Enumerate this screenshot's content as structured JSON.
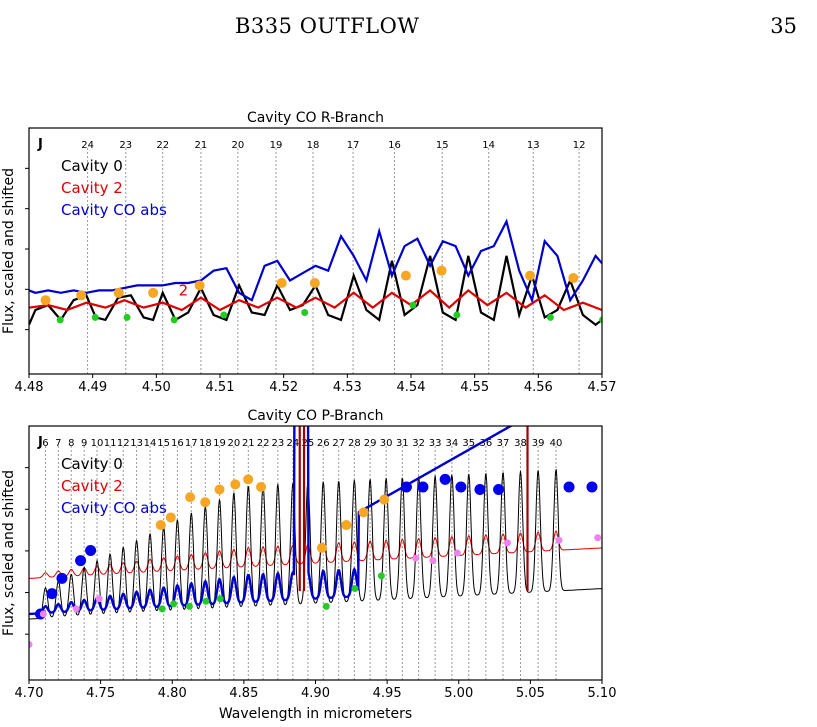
{
  "header": {
    "title": "B335 OUTFLOW",
    "page": "35"
  },
  "chart_data": [
    {
      "type": "line",
      "title": "Cavity CO R-Branch",
      "ylabel": "Flux, scaled and shifted",
      "xlabel": "",
      "xlim": [
        4.48,
        4.57
      ],
      "ylim": [
        0,
        1
      ],
      "xticks": [
        4.48,
        4.49,
        4.5,
        4.51,
        4.52,
        4.53,
        4.54,
        4.55,
        4.56,
        4.57
      ],
      "j_marker": "J",
      "j_lines": [
        {
          "label": "24",
          "x": 4.4892
        },
        {
          "label": "23",
          "x": 4.4952
        },
        {
          "label": "22",
          "x": 4.501
        },
        {
          "label": "21",
          "x": 4.507
        },
        {
          "label": "20",
          "x": 4.5128
        },
        {
          "label": "19",
          "x": 4.5188
        },
        {
          "label": "18",
          "x": 4.5246
        },
        {
          "label": "17",
          "x": 4.5309
        },
        {
          "label": "16",
          "x": 4.5374
        },
        {
          "label": "15",
          "x": 4.5449
        },
        {
          "label": "14",
          "x": 4.5522
        },
        {
          "label": "13",
          "x": 4.5592
        },
        {
          "label": "12",
          "x": 4.5664
        }
      ],
      "annotation": {
        "text": "2",
        "x": 4.5035,
        "y": 0.32
      },
      "legend": [
        {
          "name": "Cavity 0",
          "color": "#000000"
        },
        {
          "name": "Cavity 2",
          "color": "#dd0000"
        },
        {
          "name": "Cavity CO abs",
          "color": "#0000cc"
        }
      ],
      "series": [
        {
          "name": "Cavity 0",
          "color": "#000000",
          "x": [
            4.48,
            4.481,
            4.483,
            4.485,
            4.487,
            4.489,
            4.4905,
            4.492,
            4.494,
            4.496,
            4.498,
            4.4995,
            4.501,
            4.503,
            4.505,
            4.507,
            4.509,
            4.511,
            4.513,
            4.515,
            4.517,
            4.519,
            4.521,
            4.523,
            4.525,
            4.527,
            4.529,
            4.531,
            4.533,
            4.535,
            4.537,
            4.539,
            4.541,
            4.543,
            4.545,
            4.547,
            4.549,
            4.551,
            4.553,
            4.555,
            4.557,
            4.559,
            4.561,
            4.563,
            4.565,
            4.567,
            4.569,
            4.57
          ],
          "y": [
            0.2,
            0.26,
            0.28,
            0.22,
            0.3,
            0.32,
            0.23,
            0.22,
            0.31,
            0.32,
            0.23,
            0.22,
            0.33,
            0.22,
            0.25,
            0.35,
            0.24,
            0.22,
            0.36,
            0.25,
            0.24,
            0.36,
            0.26,
            0.28,
            0.36,
            0.24,
            0.22,
            0.4,
            0.26,
            0.22,
            0.46,
            0.24,
            0.28,
            0.48,
            0.25,
            0.22,
            0.48,
            0.25,
            0.22,
            0.48,
            0.24,
            0.4,
            0.23,
            0.26,
            0.38,
            0.24,
            0.2,
            0.22
          ]
        },
        {
          "name": "Cavity 2",
          "color": "#dd0000",
          "x": [
            4.48,
            4.483,
            4.486,
            4.489,
            4.492,
            4.495,
            4.498,
            4.501,
            4.504,
            4.507,
            4.51,
            4.513,
            4.516,
            4.519,
            4.522,
            4.525,
            4.528,
            4.531,
            4.534,
            4.537,
            4.54,
            4.543,
            4.546,
            4.549,
            4.552,
            4.555,
            4.558,
            4.561,
            4.564,
            4.567,
            4.57
          ],
          "y": [
            0.27,
            0.28,
            0.26,
            0.29,
            0.27,
            0.3,
            0.27,
            0.29,
            0.26,
            0.31,
            0.26,
            0.3,
            0.27,
            0.31,
            0.27,
            0.31,
            0.27,
            0.33,
            0.27,
            0.33,
            0.28,
            0.34,
            0.27,
            0.34,
            0.28,
            0.33,
            0.27,
            0.32,
            0.26,
            0.29,
            0.26
          ]
        },
        {
          "name": "Cavity CO abs",
          "color": "#0000cc",
          "x": [
            4.48,
            4.481,
            4.483,
            4.485,
            4.487,
            4.489,
            4.491,
            4.493,
            4.495,
            4.497,
            4.499,
            4.501,
            4.503,
            4.505,
            4.507,
            4.509,
            4.511,
            4.513,
            4.515,
            4.517,
            4.519,
            4.521,
            4.523,
            4.525,
            4.527,
            4.529,
            4.531,
            4.533,
            4.535,
            4.537,
            4.539,
            4.541,
            4.543,
            4.545,
            4.547,
            4.549,
            4.551,
            4.553,
            4.555,
            4.557,
            4.559,
            4.561,
            4.563,
            4.565,
            4.567,
            4.569,
            4.57
          ],
          "y": [
            0.34,
            0.33,
            0.34,
            0.33,
            0.34,
            0.33,
            0.34,
            0.34,
            0.35,
            0.36,
            0.36,
            0.36,
            0.37,
            0.37,
            0.38,
            0.42,
            0.43,
            0.33,
            0.3,
            0.44,
            0.46,
            0.38,
            0.41,
            0.44,
            0.42,
            0.56,
            0.48,
            0.38,
            0.58,
            0.4,
            0.52,
            0.55,
            0.44,
            0.54,
            0.52,
            0.4,
            0.5,
            0.52,
            0.62,
            0.42,
            0.3,
            0.54,
            0.48,
            0.3,
            0.38,
            0.48,
            0.45
          ]
        }
      ],
      "markers": {
        "orange": {
          "color": "#f5a623",
          "points": [
            [
              4.4826,
              0.3
            ],
            [
              4.4882,
              0.32
            ],
            [
              4.4941,
              0.33
            ],
            [
              4.4995,
              0.33
            ],
            [
              4.5068,
              0.36
            ],
            [
              4.5197,
              0.37
            ],
            [
              4.5249,
              0.37
            ],
            [
              4.5392,
              0.4
            ],
            [
              4.5448,
              0.42
            ],
            [
              4.5587,
              0.4
            ],
            [
              4.5655,
              0.39
            ]
          ]
        },
        "green": {
          "color": "#22cc22",
          "points": [
            [
              4.4849,
              0.22
            ],
            [
              4.4904,
              0.23
            ],
            [
              4.4954,
              0.23
            ],
            [
              4.5028,
              0.22
            ],
            [
              4.5106,
              0.24
            ],
            [
              4.5233,
              0.25
            ],
            [
              4.5403,
              0.28
            ],
            [
              4.5472,
              0.24
            ],
            [
              4.5619,
              0.23
            ],
            [
              4.5701,
              0.22
            ]
          ]
        }
      }
    },
    {
      "type": "line",
      "title": "Cavity CO P-Branch",
      "ylabel": "Flux, scaled and shifted",
      "xlabel": "Wavelength in micrometers",
      "xlim": [
        4.7,
        5.1
      ],
      "ylim": [
        0,
        1
      ],
      "xticks": [
        4.7,
        4.75,
        4.8,
        4.85,
        4.9,
        4.95,
        5.0,
        5.05,
        5.1
      ],
      "j_marker": "J",
      "j_lines": [
        {
          "label": "6",
          "x": 4.7115
        },
        {
          "label": "7",
          "x": 4.7205
        },
        {
          "label": "8",
          "x": 4.7295
        },
        {
          "label": "9",
          "x": 4.7385
        },
        {
          "label": "10",
          "x": 4.7475
        },
        {
          "label": "11",
          "x": 4.7566
        },
        {
          "label": "12",
          "x": 4.7658
        },
        {
          "label": "13",
          "x": 4.7751
        },
        {
          "label": "14",
          "x": 4.7845
        },
        {
          "label": "15",
          "x": 4.794
        },
        {
          "label": "16",
          "x": 4.8036
        },
        {
          "label": "17",
          "x": 4.8133
        },
        {
          "label": "18",
          "x": 4.8231
        },
        {
          "label": "19",
          "x": 4.833
        },
        {
          "label": "20",
          "x": 4.843
        },
        {
          "label": "21",
          "x": 4.8531
        },
        {
          "label": "22",
          "x": 4.8634
        },
        {
          "label": "23",
          "x": 4.8737
        },
        {
          "label": "24",
          "x": 4.8842
        },
        {
          "label": "25",
          "x": 4.8947
        },
        {
          "label": "26",
          "x": 4.9054
        },
        {
          "label": "27",
          "x": 4.9162
        },
        {
          "label": "28",
          "x": 4.9271
        },
        {
          "label": "29",
          "x": 4.9381
        },
        {
          "label": "30",
          "x": 4.9493
        },
        {
          "label": "31",
          "x": 4.9606
        },
        {
          "label": "32",
          "x": 4.972
        },
        {
          "label": "33",
          "x": 4.9835
        },
        {
          "label": "34",
          "x": 4.9952
        },
        {
          "label": "35",
          "x": 5.007
        },
        {
          "label": "36",
          "x": 5.0189
        },
        {
          "label": "37",
          "x": 5.0309
        },
        {
          "label": "38",
          "x": 5.0431
        },
        {
          "label": "39",
          "x": 5.0554
        },
        {
          "label": "40",
          "x": 5.0679
        }
      ],
      "legend": [
        {
          "name": "Cavity 0",
          "color": "#000000"
        },
        {
          "name": "Cavity 2",
          "color": "#dd0000"
        },
        {
          "name": "Cavity CO abs",
          "color": "#0000cc"
        }
      ],
      "markers": {
        "blue": {
          "color": "#0000ee",
          "points": [
            [
              4.708,
              0.26
            ],
            [
              4.716,
              0.34
            ],
            [
              4.723,
              0.4
            ],
            [
              4.736,
              0.47
            ],
            [
              4.743,
              0.51
            ],
            [
              4.9635,
              0.76
            ],
            [
              4.975,
              0.76
            ],
            [
              4.9905,
              0.79
            ],
            [
              5.0015,
              0.76
            ],
            [
              5.0148,
              0.75
            ],
            [
              5.0278,
              0.75
            ],
            [
              5.077,
              0.76
            ],
            [
              5.093,
              0.76
            ]
          ]
        },
        "orange": {
          "color": "#f5a623",
          "points": [
            [
              4.792,
              0.61
            ],
            [
              4.799,
              0.64
            ],
            [
              4.8125,
              0.72
            ],
            [
              4.823,
              0.7
            ],
            [
              4.833,
              0.75
            ],
            [
              4.844,
              0.77
            ],
            [
              4.853,
              0.79
            ],
            [
              4.862,
              0.76
            ],
            [
              4.9045,
              0.52
            ],
            [
              4.9215,
              0.61
            ],
            [
              4.9335,
              0.66
            ],
            [
              4.948,
              0.71
            ]
          ]
        },
        "green": {
          "color": "#22cc22",
          "points": [
            [
              4.793,
              0.28
            ],
            [
              4.801,
              0.3
            ],
            [
              4.812,
              0.29
            ],
            [
              4.8235,
              0.31
            ],
            [
              4.8335,
              0.32
            ],
            [
              4.9075,
              0.29
            ],
            [
              4.9275,
              0.36
            ],
            [
              4.946,
              0.41
            ]
          ]
        },
        "violet": {
          "color": "#ee82ee",
          "points": [
            [
              4.7,
              0.14
            ],
            [
              4.71,
              0.26
            ],
            [
              4.733,
              0.28
            ],
            [
              4.749,
              0.32
            ],
            [
              4.982,
              0.47
            ],
            [
              4.97,
              0.48
            ],
            [
              4.999,
              0.5
            ],
            [
              5.034,
              0.54
            ],
            [
              5.07,
              0.55
            ],
            [
              5.097,
              0.56
            ]
          ]
        }
      }
    }
  ]
}
